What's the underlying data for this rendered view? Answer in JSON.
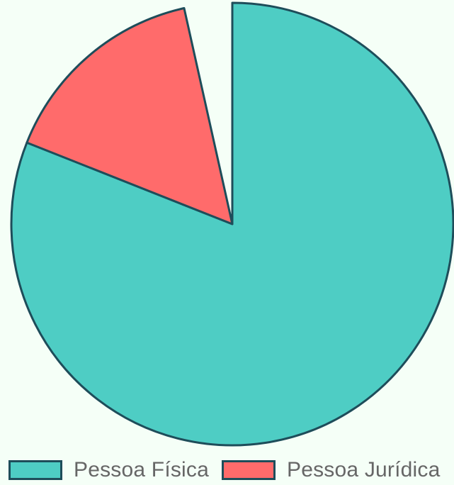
{
  "chart_data": {
    "type": "pie",
    "categories": [
      "Pessoa Física",
      "Pessoa Jurídica",
      ""
    ],
    "values": [
      81,
      15.5,
      3.5
    ],
    "colors": [
      "#4ecdc4",
      "#ff6b6b",
      "#f5fff7"
    ],
    "stroke": "#1e4d5a",
    "start_angle_deg": 0,
    "direction": "clockwise",
    "legend": {
      "position": "bottom",
      "entries": [
        {
          "label": "Pessoa Física",
          "color": "#4ecdc4"
        },
        {
          "label": "Pessoa Jurídica",
          "color": "#ff6b6b"
        }
      ]
    }
  }
}
